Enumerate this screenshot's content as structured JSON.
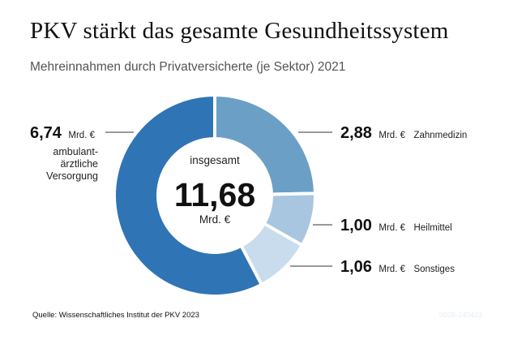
{
  "title": "PKV stärkt das gesamte Gesundheitssystem",
  "subtitle": "Mehreinnahmen durch Privatversicherte (je Sektor) 2021",
  "source": "Quelle: Wissenschaftliches Institut der PKV 2023",
  "code": "0028-240423",
  "center": {
    "label_top": "insgesamt",
    "value": "11,68",
    "unit": "Mrd. €"
  },
  "chart_data": {
    "type": "pie",
    "donut": true,
    "unit": "Mrd. €",
    "total": 11.68,
    "slices": [
      {
        "label": "Zahnmedizin",
        "value": 2.88,
        "value_text": "2,88",
        "color": "#6b9fc6"
      },
      {
        "label": "Heilmittel",
        "value": 1.0,
        "value_text": "1,00",
        "color": "#a8c6e0"
      },
      {
        "label": "Sonstiges",
        "value": 1.06,
        "value_text": "1,06",
        "color": "#c9dcee"
      },
      {
        "label_lines": [
          "ambulant-",
          "ärztliche",
          "Versorgung"
        ],
        "value": 6.74,
        "value_text": "6,74",
        "color": "#2f74b5"
      }
    ]
  }
}
